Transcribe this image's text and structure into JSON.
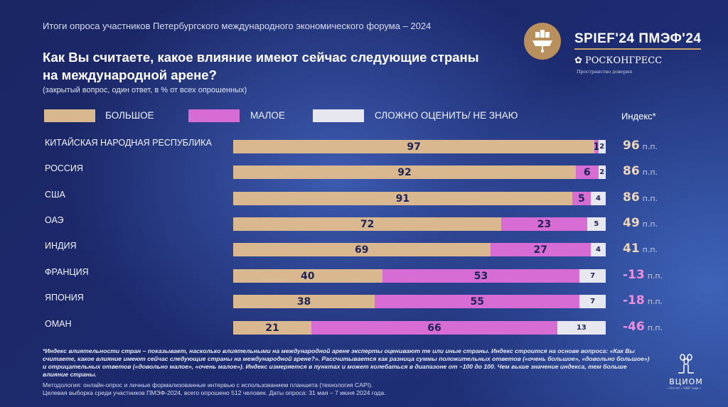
{
  "header": {
    "supertitle": "Итоги опроса участников Петербургского международного экономического форума – 2024",
    "title": "Как Вы считаете, какое влияние имеют сейчас следующие страны на международной арене?",
    "subtitle": "(закрытый вопрос, один ответ, в % от всех опрошенных)"
  },
  "logos": {
    "spief": "SPIEF'24  ПМЭФ'24",
    "roscongress": "РОСКОНГРЕСС",
    "roscongress_tagline": "Пространство доверия",
    "vciom": "ВЦИОМ",
    "vciom_tagline": "• Отсчет с 1987 года •"
  },
  "colors": {
    "large": "#d9b88f",
    "small": "#d86cd5",
    "unsure": "#e6e7ef",
    "index_positive": "#ecd6b6",
    "index_negative": "#ec8fdc"
  },
  "chart_data": {
    "type": "bar",
    "stacked": true,
    "orientation": "horizontal",
    "categories": [
      "КИТАЙСКАЯ НАРОДНАЯ РЕСПУБЛИКА",
      "РОССИЯ",
      "США",
      "ОАЭ",
      "ИНДИЯ",
      "ФРАНЦИЯ",
      "ЯПОНИЯ",
      "ОМАН"
    ],
    "series": [
      {
        "name": "БОЛЬШОЕ",
        "values": [
          97,
          92,
          91,
          72,
          69,
          40,
          38,
          21
        ]
      },
      {
        "name": "МАЛОЕ",
        "values": [
          1,
          6,
          5,
          23,
          27,
          53,
          55,
          66
        ]
      },
      {
        "name": "СЛОЖНО ОЦЕНИТЬ/ НЕ ЗНАЮ",
        "values": [
          2,
          2,
          4,
          5,
          4,
          7,
          7,
          13
        ]
      }
    ],
    "index_header": "Индекс*",
    "index_values": [
      96,
      86,
      86,
      49,
      41,
      -13,
      -18,
      -46
    ],
    "index_labels": [
      "96",
      "86",
      "86",
      "49",
      "41",
      "-13",
      "-18",
      "-46"
    ],
    "index_unit": "п.п.",
    "legend": "top"
  },
  "footer": {
    "note": "*Индекс влиятельности стран – показывает, насколько влиятельными на международной арене эксперты  оценивают те или иные страны. Индекс строится на основе вопроса: «Как Вы считаете, какое влияние имеют сейчас следующие страны на международной арене?». Рассчитывается как разница суммы положительных ответов («очень большое», «довольно большое») и отрицательных ответов («довольно малое», «очень малое»). Индекс измеряется в пунктах и может колебаться в диапазоне от –100 до 100. Чем выше значение индекса, тем больше влияние страны.",
    "methodology": "Методология: онлайн-опрос и личные формализованные интервью с использованием планшета (технология CAPI).",
    "sample": "Целевая выборка среди участников ПМЭФ-2024, всего опрошено 512 человек. Даты опроса: 31 мая – 7 июня 2024 года."
  }
}
